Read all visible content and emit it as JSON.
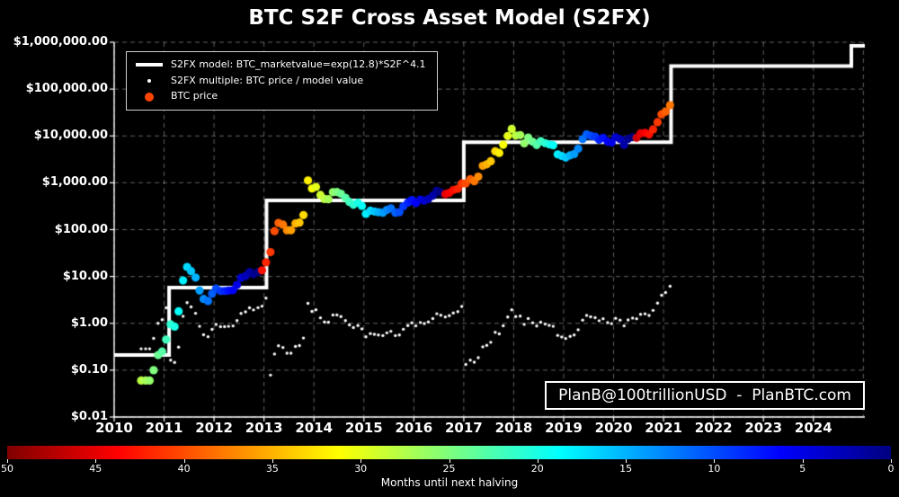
{
  "title": "BTC S2F Cross Asset Model (S2FX)",
  "watermark": "PlanB@100trillionUSD  -  PlanBTC.com",
  "legend": {
    "items": [
      {
        "swatch": "line",
        "color": "#ffffff",
        "label": "S2FX model: BTC_marketvalue=exp(12.8)*S2F^4.1"
      },
      {
        "swatch": "dot-small",
        "color": "#ffffff",
        "label": "S2FX multiple: BTC price / model value"
      },
      {
        "swatch": "dot",
        "color": "#ff4400",
        "label": "BTC price"
      }
    ]
  },
  "chart_data": {
    "type": "scatter",
    "title": "BTC S2F Cross Asset Model (S2FX)",
    "background": "#000000",
    "x_axis": {
      "range": [
        2010,
        2025.03
      ],
      "ticks": [
        2010,
        2011,
        2012,
        2013,
        2014,
        2015,
        2016,
        2017,
        2018,
        2019,
        2020,
        2021,
        2022,
        2023,
        2024
      ],
      "grid": "dashed"
    },
    "y_axis": {
      "scale": "log10",
      "range": [
        0.01,
        1000000
      ],
      "ticks": [
        {
          "value": 1000000,
          "label": "$1,000,000.00"
        },
        {
          "value": 100000,
          "label": "$100,000.00"
        },
        {
          "value": 10000,
          "label": "$10,000.00"
        },
        {
          "value": 1000,
          "label": "$1,000.00"
        },
        {
          "value": 100,
          "label": "$100.00"
        },
        {
          "value": 10,
          "label": "$10.00"
        },
        {
          "value": 1,
          "label": "$1.00"
        },
        {
          "value": 0.1,
          "label": "$0.10"
        },
        {
          "value": 0.01,
          "label": "$0.01"
        }
      ],
      "grid": "dashed"
    },
    "series": [
      {
        "name": "S2FX model",
        "style": "step-line",
        "color": "#ffffff",
        "line_width": 4,
        "segments": [
          {
            "until": 2011.1,
            "value": 0.21
          },
          {
            "until": 2013.05,
            "value": 5.8
          },
          {
            "until": 2017.0,
            "value": 420
          },
          {
            "until": 2021.15,
            "value": 7300
          },
          {
            "until": 2024.76,
            "value": 310000
          },
          {
            "until": 2025.03,
            "value": 1600000
          }
        ]
      },
      {
        "name": "BTC price",
        "style": "scatter",
        "point_radius": 4.6,
        "color_by": "months_until_next_halving via jet colormap (see colorbar)",
        "columns": [
          "decimal_year",
          "price_usd",
          "months_until_next_halving"
        ],
        "points": [
          [
            2010.54,
            0.06,
            28
          ],
          [
            2010.63,
            0.06,
            27
          ],
          [
            2010.71,
            0.06,
            26
          ],
          [
            2010.79,
            0.1,
            25
          ],
          [
            2010.88,
            0.21,
            24
          ],
          [
            2010.96,
            0.25,
            23
          ],
          [
            2011.04,
            0.45,
            22
          ],
          [
            2011.13,
            0.95,
            21
          ],
          [
            2011.21,
            0.85,
            20
          ],
          [
            2011.29,
            1.8,
            19
          ],
          [
            2011.38,
            8.2,
            18
          ],
          [
            2011.46,
            16,
            17
          ],
          [
            2011.54,
            13,
            16
          ],
          [
            2011.63,
            9.5,
            15
          ],
          [
            2011.71,
            5.0,
            14
          ],
          [
            2011.79,
            3.3,
            13
          ],
          [
            2011.88,
            3.0,
            12
          ],
          [
            2011.96,
            4.3,
            11
          ],
          [
            2012.04,
            5.5,
            10
          ],
          [
            2012.13,
            4.9,
            9
          ],
          [
            2012.21,
            4.9,
            8
          ],
          [
            2012.29,
            5.0,
            7
          ],
          [
            2012.38,
            5.1,
            6
          ],
          [
            2012.46,
            6.6,
            5
          ],
          [
            2012.54,
            9.4,
            4
          ],
          [
            2012.63,
            10.2,
            3
          ],
          [
            2012.71,
            12.4,
            2
          ],
          [
            2012.79,
            11.2,
            1
          ],
          [
            2012.88,
            12.5,
            0
          ],
          [
            2012.96,
            13.5,
            43
          ],
          [
            2013.04,
            20,
            42
          ],
          [
            2013.13,
            33,
            41
          ],
          [
            2013.21,
            93,
            40
          ],
          [
            2013.29,
            139,
            39
          ],
          [
            2013.38,
            128,
            38
          ],
          [
            2013.46,
            97,
            37
          ],
          [
            2013.54,
            97,
            36
          ],
          [
            2013.63,
            135,
            35
          ],
          [
            2013.71,
            141,
            34
          ],
          [
            2013.79,
            204,
            33
          ],
          [
            2013.88,
            1120,
            32
          ],
          [
            2013.96,
            755,
            31
          ],
          [
            2014.04,
            815,
            30
          ],
          [
            2014.13,
            550,
            29
          ],
          [
            2014.21,
            450,
            28
          ],
          [
            2014.29,
            445,
            27
          ],
          [
            2014.38,
            630,
            26
          ],
          [
            2014.46,
            635,
            25
          ],
          [
            2014.54,
            585,
            24
          ],
          [
            2014.63,
            480,
            23
          ],
          [
            2014.71,
            390,
            22
          ],
          [
            2014.79,
            340,
            21
          ],
          [
            2014.88,
            375,
            20
          ],
          [
            2014.96,
            320,
            19
          ],
          [
            2015.04,
            217,
            18
          ],
          [
            2015.13,
            254,
            17
          ],
          [
            2015.21,
            244,
            16
          ],
          [
            2015.29,
            236,
            15
          ],
          [
            2015.38,
            230,
            14
          ],
          [
            2015.46,
            263,
            13
          ],
          [
            2015.54,
            284,
            12
          ],
          [
            2015.63,
            230,
            11
          ],
          [
            2015.71,
            236,
            10
          ],
          [
            2015.79,
            314,
            9
          ],
          [
            2015.88,
            377,
            8
          ],
          [
            2015.96,
            430,
            7
          ],
          [
            2016.04,
            370,
            6
          ],
          [
            2016.13,
            437,
            5
          ],
          [
            2016.21,
            416,
            4
          ],
          [
            2016.29,
            448,
            3
          ],
          [
            2016.38,
            531,
            2
          ],
          [
            2016.46,
            673,
            1
          ],
          [
            2016.54,
            624,
            0
          ],
          [
            2016.63,
            575,
            45
          ],
          [
            2016.71,
            610,
            44
          ],
          [
            2016.79,
            700,
            43
          ],
          [
            2016.88,
            745,
            42
          ],
          [
            2016.96,
            964,
            41
          ],
          [
            2017.04,
            970,
            40
          ],
          [
            2017.13,
            1190,
            39
          ],
          [
            2017.21,
            1080,
            38
          ],
          [
            2017.29,
            1350,
            37
          ],
          [
            2017.38,
            2300,
            36
          ],
          [
            2017.46,
            2480,
            35
          ],
          [
            2017.54,
            2875,
            34
          ],
          [
            2017.63,
            4700,
            33
          ],
          [
            2017.71,
            4340,
            32
          ],
          [
            2017.79,
            6470,
            31
          ],
          [
            2017.88,
            9950,
            30
          ],
          [
            2017.96,
            14150,
            29
          ],
          [
            2018.04,
            10200,
            28
          ],
          [
            2018.13,
            10400,
            27
          ],
          [
            2018.21,
            6940,
            26
          ],
          [
            2018.29,
            9240,
            25
          ],
          [
            2018.38,
            7500,
            24
          ],
          [
            2018.46,
            6400,
            23
          ],
          [
            2018.54,
            7730,
            22
          ],
          [
            2018.63,
            7030,
            21
          ],
          [
            2018.71,
            6630,
            20
          ],
          [
            2018.79,
            6300,
            19
          ],
          [
            2018.88,
            4040,
            18
          ],
          [
            2018.96,
            3740,
            17
          ],
          [
            2019.04,
            3460,
            16
          ],
          [
            2019.13,
            3855,
            15
          ],
          [
            2019.21,
            4100,
            14
          ],
          [
            2019.29,
            5320,
            13
          ],
          [
            2019.38,
            8560,
            12
          ],
          [
            2019.46,
            10800,
            11
          ],
          [
            2019.54,
            10080,
            10
          ],
          [
            2019.63,
            9630,
            9
          ],
          [
            2019.71,
            8290,
            8
          ],
          [
            2019.79,
            9150,
            7
          ],
          [
            2019.88,
            7560,
            6
          ],
          [
            2019.96,
            7190,
            5
          ],
          [
            2020.04,
            9350,
            4
          ],
          [
            2020.13,
            8550,
            3
          ],
          [
            2020.21,
            6440,
            2
          ],
          [
            2020.29,
            8630,
            1
          ],
          [
            2020.38,
            9450,
            0
          ],
          [
            2020.46,
            9140,
            46
          ],
          [
            2020.54,
            11350,
            45
          ],
          [
            2020.63,
            11650,
            44
          ],
          [
            2020.71,
            10780,
            43
          ],
          [
            2020.79,
            13800,
            42
          ],
          [
            2020.88,
            19700,
            41
          ],
          [
            2020.96,
            29000,
            40
          ],
          [
            2021.04,
            33100,
            39
          ],
          [
            2021.13,
            45200,
            38
          ]
        ]
      },
      {
        "name": "S2FX multiple",
        "style": "scatter",
        "color": "#ffffff",
        "point_radius": 1.7,
        "definition": "BTC price / model value (derived from the two series above)"
      }
    ],
    "colorbar": {
      "label": "Months until next halving",
      "ticks": [
        50,
        45,
        40,
        35,
        30,
        25,
        20,
        15,
        10,
        5,
        0
      ],
      "colormap": "jet reversed (50 = dark red, 0 = dark blue)",
      "gradient_stops": [
        {
          "pos": 0,
          "color": "#800000"
        },
        {
          "pos": 0.125,
          "color": "#ff0000"
        },
        {
          "pos": 0.375,
          "color": "#ffff00"
        },
        {
          "pos": 0.5,
          "color": "#7dff7d"
        },
        {
          "pos": 0.625,
          "color": "#00ffff"
        },
        {
          "pos": 0.875,
          "color": "#0000ff"
        },
        {
          "pos": 1,
          "color": "#000080"
        }
      ]
    }
  }
}
